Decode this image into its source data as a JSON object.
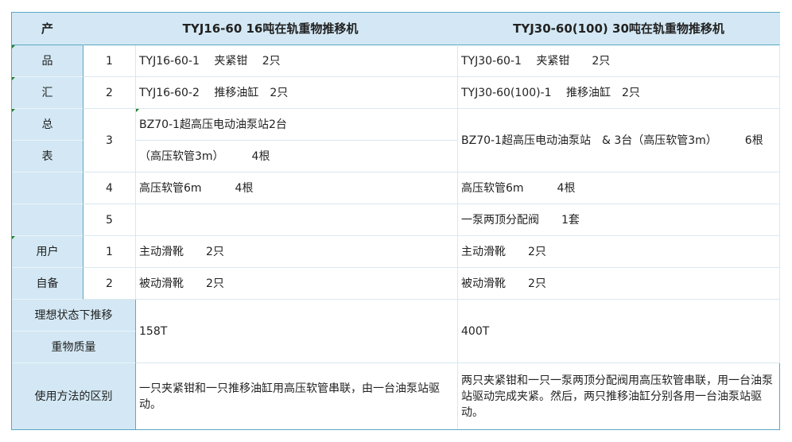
{
  "header": {
    "label": "产",
    "col1": "TYJ16-60 16吨在轨重物推移机",
    "col2": "TYJ30-60(100)  30吨在轨重物推移机"
  },
  "side_labels": [
    "品",
    "汇",
    "总",
    "表",
    "用户",
    "自备"
  ],
  "rows": [
    {
      "num": "1",
      "a": "TYJ16-60-1　 夹紧钳　 2只",
      "b": "TYJ30-60-1　 夹紧钳　　2只"
    },
    {
      "num": "2",
      "a": "TYJ16-60-2　 推移油缸　2只",
      "b": "TYJ30-60(100)-1　 推移油缸　2只"
    },
    {
      "num": "3",
      "a": "BZ70-1超高压电动油泵站2台",
      "a2": "（高压软管3m）　　　4根",
      "b": "BZ70-1超高压电动油泵站　& 3台（高压软管3m）　　　6根"
    },
    {
      "num": "4",
      "a": "高压软管6m　　　4根",
      "b": "高压软管6m　　　4根"
    },
    {
      "num": "5",
      "a": "",
      "b": "一泵两顶分配阀　　1套"
    },
    {
      "num": "1",
      "a": "主动滑靴　　2只",
      "b": "主动滑靴　　2只"
    },
    {
      "num": "2",
      "a": "被动滑靴　　2只",
      "b": "被动滑靴　　2只"
    }
  ],
  "capacity": {
    "label1": "理想状态下推移",
    "label2": "重物质量",
    "a": "158T",
    "b": "400T"
  },
  "usage": {
    "label": "使用方法的区别",
    "a": "一只夹紧钳和一只推移油缸用高压软管串联，由一台油泵站驱动。",
    "b": "两只夹紧钳和一只一泵两顶分配阀用高压软管串联，用一台油泵站驱动完成夹紧。然后，两只推移油缸分别各用一台油泵站驱动。"
  }
}
